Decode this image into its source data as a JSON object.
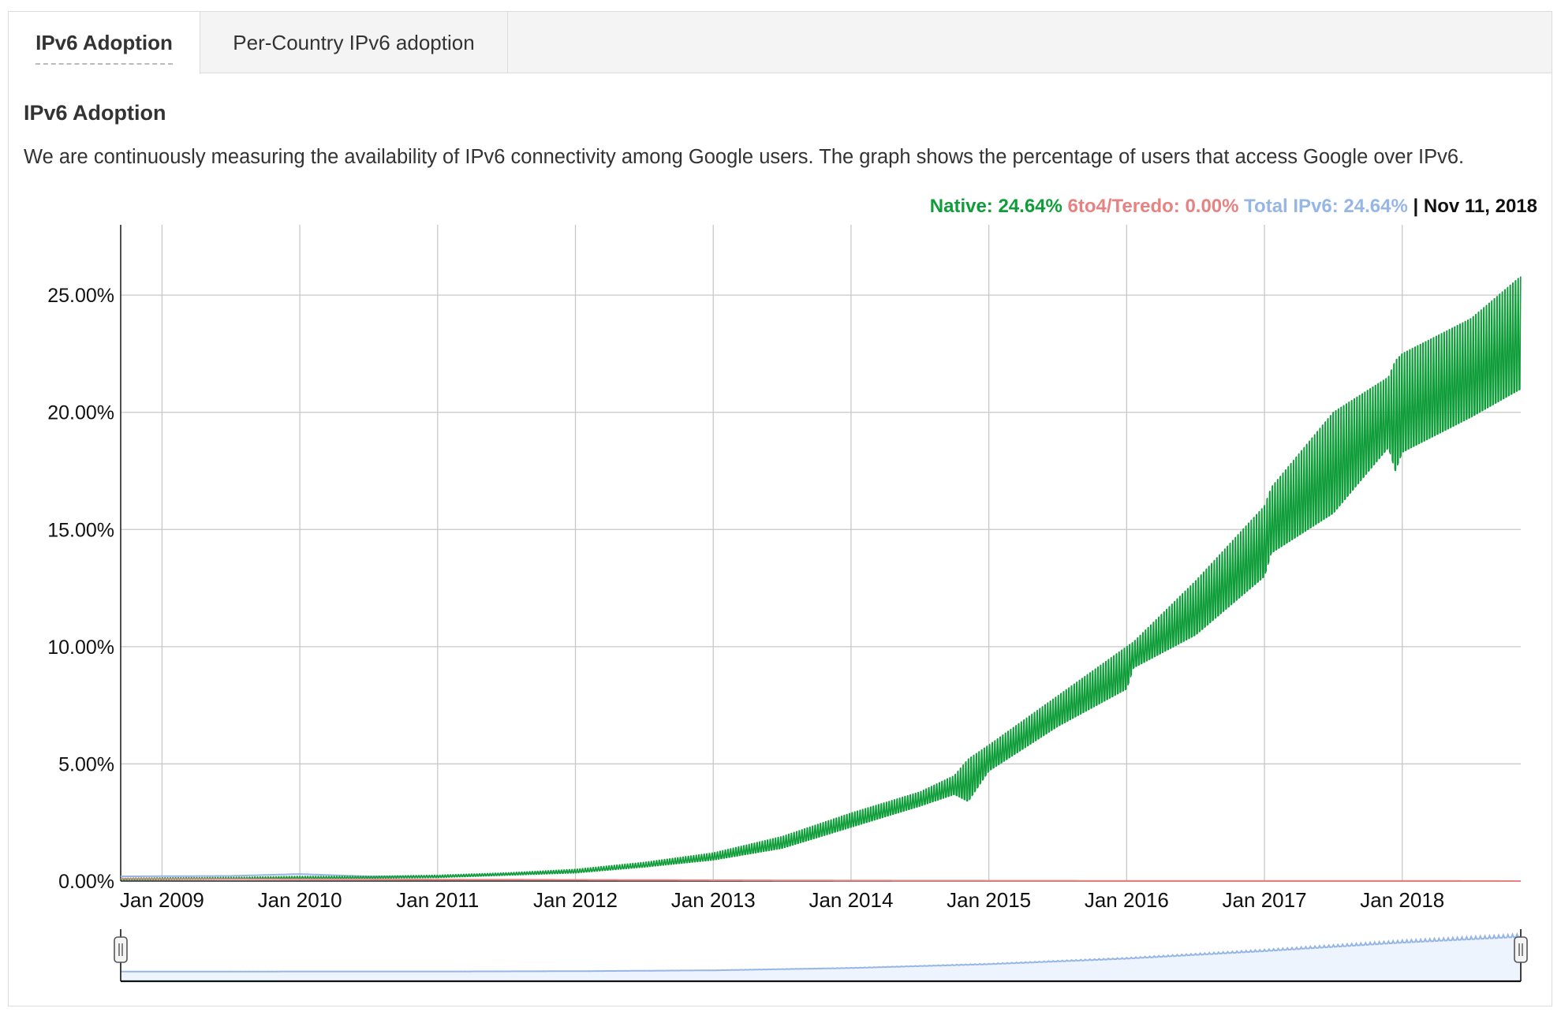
{
  "tabs": [
    {
      "label": "IPv6 Adoption",
      "active": true
    },
    {
      "label": "Per-Country IPv6 adoption",
      "active": false
    }
  ],
  "section": {
    "title": "IPv6 Adoption",
    "description": "We are continuously measuring the availability of IPv6 connectivity among Google users. The graph shows the percentage of users that access Google over IPv6."
  },
  "legend": {
    "native": "Native: 24.64%",
    "teredo": "6to4/Teredo: 0.00%",
    "total": "Total IPv6: 24.64%",
    "separator": " | ",
    "date": "Nov 11, 2018"
  },
  "colors": {
    "native": "#0f9d3a",
    "teredo": "#e88282",
    "total": "#96b6e6",
    "grid": "#c8c8c8"
  },
  "chart_data": {
    "type": "line",
    "title": "",
    "xlabel": "",
    "ylabel": "",
    "ylim": [
      0,
      28
    ],
    "xlim": [
      "2008-09",
      "2018-11"
    ],
    "y_ticks": [
      "0.00%",
      "5.00%",
      "10.00%",
      "15.00%",
      "20.00%",
      "25.00%"
    ],
    "y_tick_values": [
      0,
      5,
      10,
      15,
      20,
      25
    ],
    "x_ticks": [
      "Jan 2009",
      "Jan 2010",
      "Jan 2011",
      "Jan 2012",
      "Jan 2013",
      "Jan 2014",
      "Jan 2015",
      "Jan 2016",
      "Jan 2017",
      "Jan 2018"
    ],
    "x_tick_values": [
      2009.0,
      2010.0,
      2011.0,
      2012.0,
      2013.0,
      2014.0,
      2015.0,
      2016.0,
      2017.0,
      2018.0
    ],
    "grid": true,
    "series": [
      {
        "name": "Native",
        "color": "#0f9d3a",
        "x": [
          2008.7,
          2009.0,
          2009.5,
          2010.0,
          2010.5,
          2011.0,
          2011.5,
          2012.0,
          2012.5,
          2013.0,
          2013.5,
          2014.0,
          2014.5,
          2014.75,
          2014.85,
          2015.0,
          2015.5,
          2016.0,
          2016.05,
          2016.5,
          2017.0,
          2017.05,
          2017.5,
          2017.9,
          2017.95,
          2018.0,
          2018.5,
          2018.86
        ],
        "low": [
          0.05,
          0.06,
          0.08,
          0.1,
          0.12,
          0.15,
          0.25,
          0.35,
          0.6,
          0.9,
          1.4,
          2.3,
          3.2,
          3.7,
          3.4,
          4.7,
          6.6,
          8.2,
          9.1,
          10.5,
          13.0,
          14.0,
          15.7,
          18.5,
          17.5,
          18.3,
          19.8,
          21.0
        ],
        "high": [
          0.12,
          0.14,
          0.16,
          0.2,
          0.2,
          0.25,
          0.35,
          0.5,
          0.8,
          1.2,
          1.9,
          2.9,
          3.8,
          4.5,
          5.2,
          5.8,
          7.9,
          10.0,
          10.2,
          12.8,
          16.0,
          16.8,
          20.0,
          21.5,
          22.2,
          22.5,
          24.0,
          25.8
        ]
      },
      {
        "name": "6to4/Teredo",
        "color": "#e88282",
        "x": [
          2008.7,
          2010.0,
          2012.0,
          2014.0,
          2016.0,
          2018.0,
          2018.86
        ],
        "values": [
          0.1,
          0.08,
          0.05,
          0.02,
          0.01,
          0.01,
          0.0
        ]
      },
      {
        "name": "Total IPv6",
        "color": "#96b6e6",
        "x": [
          2008.7,
          2009.5,
          2010.0,
          2010.5,
          2011.0,
          2011.5,
          2012.0
        ],
        "values": [
          0.2,
          0.22,
          0.3,
          0.2,
          0.2,
          0.3,
          0.42
        ]
      }
    ],
    "navigator": {
      "x": [
        2008.7,
        2010.0,
        2011.0,
        2012.0,
        2013.0,
        2014.0,
        2015.0,
        2016.0,
        2017.0,
        2018.0,
        2018.86
      ],
      "values": [
        0.15,
        0.2,
        0.2,
        0.4,
        1.0,
        2.6,
        5.3,
        9.2,
        14.5,
        20.5,
        24.6
      ]
    }
  }
}
